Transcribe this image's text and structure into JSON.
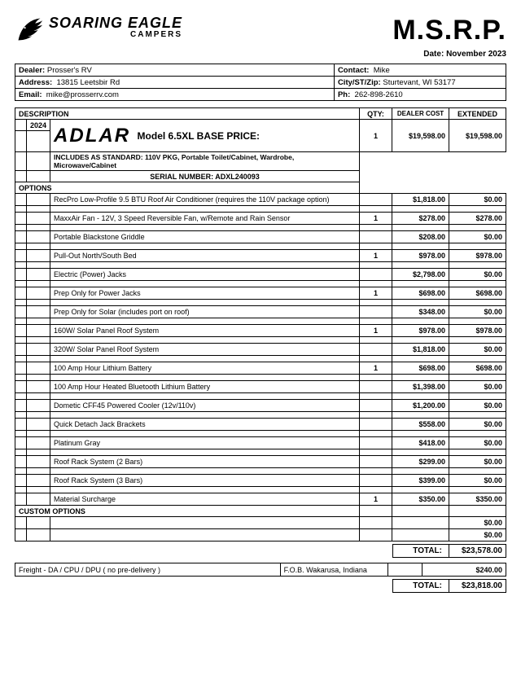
{
  "header": {
    "company_main": "SOARING EAGLE",
    "company_sub": "CAMPERS",
    "msrp": "M.S.R.P.",
    "date_label": "Date:",
    "date_value": "November 2023"
  },
  "dealer": {
    "dealer_lbl": "Dealer:",
    "dealer_val": "Prosser's RV",
    "contact_lbl": "Contact:",
    "contact_val": "Mike",
    "addr_lbl": "Address:",
    "addr_val": "13815 Leetsbir Rd",
    "city_lbl": "City/ST/Zip:",
    "city_val": "Sturtevant, WI 53177",
    "email_lbl": "Email:",
    "email_val": "mike@prosserrv.com",
    "ph_lbl": "Ph:",
    "ph_val": "262-898-2610"
  },
  "cols": {
    "desc": "DESCRIPTION",
    "qty": "QTY:",
    "cost": "DEALER COST",
    "ext": "EXTENDED"
  },
  "model": {
    "year": "2024",
    "brand": "ADLAR",
    "model_text": "Model 6.5XL BASE PRICE:",
    "qty": "1",
    "cost": "$19,598.00",
    "ext": "$19,598.00",
    "includes": "INCLUDES AS STANDARD:  110V PKG, Portable Toilet/Cabinet, Wardrobe, Microwave/Cabinet",
    "serial": "SERIAL NUMBER: ADXL240093"
  },
  "sections": {
    "options": "OPTIONS",
    "custom": "CUSTOM OPTIONS"
  },
  "options": [
    {
      "desc": "RecPro Low-Profile 9.5 BTU Roof Air Conditioner (requires the 110V package option)",
      "qty": "",
      "cost": "$1,818.00",
      "ext": "$0.00"
    },
    {
      "desc": "MaxxAir Fan - 12V, 3 Speed Reversible Fan, w/Remote and Rain Sensor",
      "qty": "1",
      "cost": "$278.00",
      "ext": "$278.00"
    },
    {
      "desc": "Portable Blackstone Griddle",
      "qty": "",
      "cost": "$208.00",
      "ext": "$0.00"
    },
    {
      "desc": "Pull-Out North/South Bed",
      "qty": "1",
      "cost": "$978.00",
      "ext": "$978.00"
    },
    {
      "desc": "Electric (Power) Jacks",
      "qty": "",
      "cost": "$2,798.00",
      "ext": "$0.00"
    },
    {
      "desc": "Prep Only for Power Jacks",
      "qty": "1",
      "cost": "$698.00",
      "ext": "$698.00"
    },
    {
      "desc": "Prep Only for Solar (includes port on roof)",
      "qty": "",
      "cost": "$348.00",
      "ext": "$0.00"
    },
    {
      "desc": "160W/ Solar Panel Roof System",
      "qty": "1",
      "cost": "$978.00",
      "ext": "$978.00"
    },
    {
      "desc": "320W/ Solar Panel Roof System",
      "qty": "",
      "cost": "$1,818.00",
      "ext": "$0.00"
    },
    {
      "desc": "100 Amp Hour Lithium Battery",
      "qty": "1",
      "cost": "$698.00",
      "ext": "$698.00"
    },
    {
      "desc": "100 Amp Hour Heated Bluetooth Lithium Battery",
      "qty": "",
      "cost": "$1,398.00",
      "ext": "$0.00"
    },
    {
      "desc": "Dometic CFF45 Powered Cooler (12v/110v)",
      "qty": "",
      "cost": "$1,200.00",
      "ext": "$0.00"
    },
    {
      "desc": "Quick Detach Jack Brackets",
      "qty": "",
      "cost": "$558.00",
      "ext": "$0.00"
    },
    {
      "desc": "Platinum Gray",
      "qty": "",
      "cost": "$418.00",
      "ext": "$0.00"
    },
    {
      "desc": "Roof Rack System  (2 Bars)",
      "qty": "",
      "cost": "$299.00",
      "ext": "$0.00"
    },
    {
      "desc": "Roof Rack System (3 Bars)",
      "qty": "",
      "cost": "$399.00",
      "ext": "$0.00"
    },
    {
      "desc": "Material Surcharge",
      "qty": "1",
      "cost": "$350.00",
      "ext": "$350.00"
    }
  ],
  "custom": [
    {
      "desc": "",
      "qty": "",
      "cost": "",
      "ext": "$0.00"
    },
    {
      "desc": "",
      "qty": "",
      "cost": "",
      "ext": "$0.00"
    }
  ],
  "totals": {
    "label": "TOTAL:",
    "subtotal": "$23,578.00",
    "grand": "$23,818.00"
  },
  "freight": {
    "desc": "Freight - DA / CPU / DPU ( no pre-delivery )",
    "fob": "F.O.B. Wakarusa, Indiana",
    "ext": "$240.00"
  }
}
